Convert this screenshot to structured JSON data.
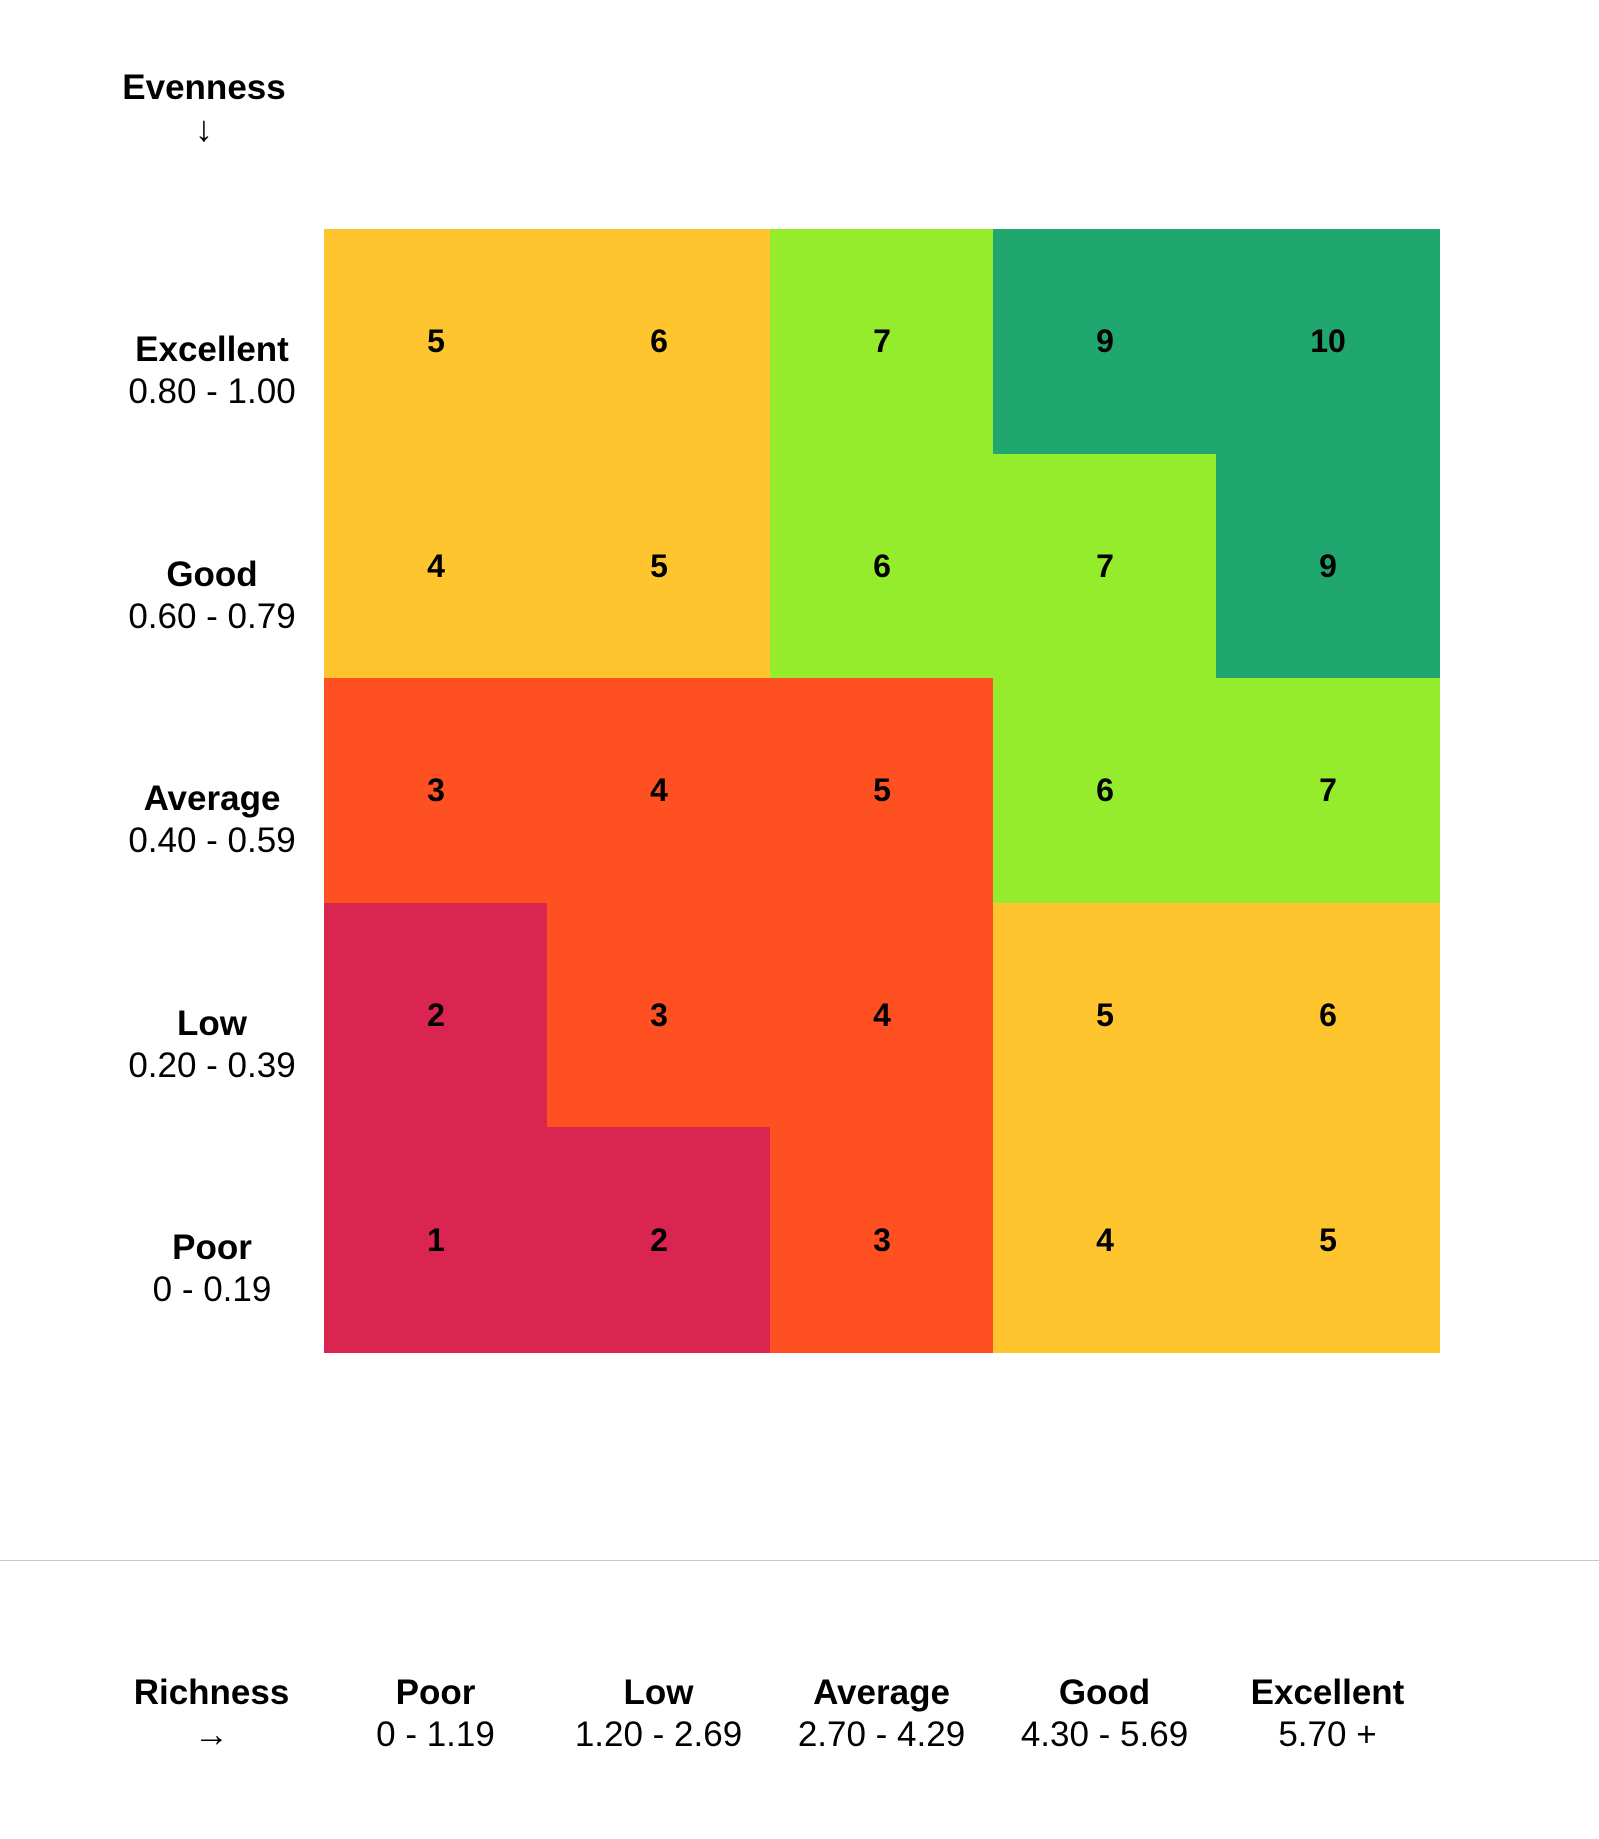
{
  "chart_data": {
    "type": "heatmap",
    "y_axis": {
      "title": "Evenness",
      "arrow": "↓"
    },
    "x_axis": {
      "title": "Richness",
      "arrow": "→"
    },
    "rows": [
      {
        "label": "Excellent",
        "range": "0.80 - 1.00"
      },
      {
        "label": "Good",
        "range": "0.60 - 0.79"
      },
      {
        "label": "Average",
        "range": "0.40 - 0.59"
      },
      {
        "label": "Low",
        "range": "0.20 - 0.39"
      },
      {
        "label": "Poor",
        "range": "0 - 0.19"
      }
    ],
    "columns": [
      {
        "label": "Poor",
        "range": "0 - 1.19"
      },
      {
        "label": "Low",
        "range": "1.20 - 2.69"
      },
      {
        "label": "Average",
        "range": "2.70 - 4.29"
      },
      {
        "label": "Good",
        "range": "4.30 - 5.69"
      },
      {
        "label": "Excellent",
        "range": "5.70 +"
      }
    ],
    "values": [
      [
        5,
        6,
        7,
        9,
        10
      ],
      [
        4,
        5,
        6,
        7,
        9
      ],
      [
        3,
        4,
        5,
        6,
        7
      ],
      [
        2,
        3,
        4,
        5,
        6
      ],
      [
        1,
        2,
        3,
        4,
        5
      ]
    ],
    "color_classes": [
      [
        "yellow",
        "yellow",
        "lightgreen",
        "darkgreen",
        "darkgreen"
      ],
      [
        "yellow",
        "yellow",
        "lightgreen",
        "lightgreen",
        "darkgreen"
      ],
      [
        "orange",
        "orange",
        "orange",
        "lightgreen",
        "lightgreen"
      ],
      [
        "red",
        "orange",
        "orange",
        "yellow",
        "yellow"
      ],
      [
        "red",
        "red",
        "orange",
        "yellow",
        "yellow"
      ]
    ],
    "colors": {
      "red": "#D92550",
      "orange": "#FE5020",
      "yellow": "#FEC52E",
      "lightgreen": "#95EC2C",
      "darkgreen": "#20A76F"
    }
  }
}
